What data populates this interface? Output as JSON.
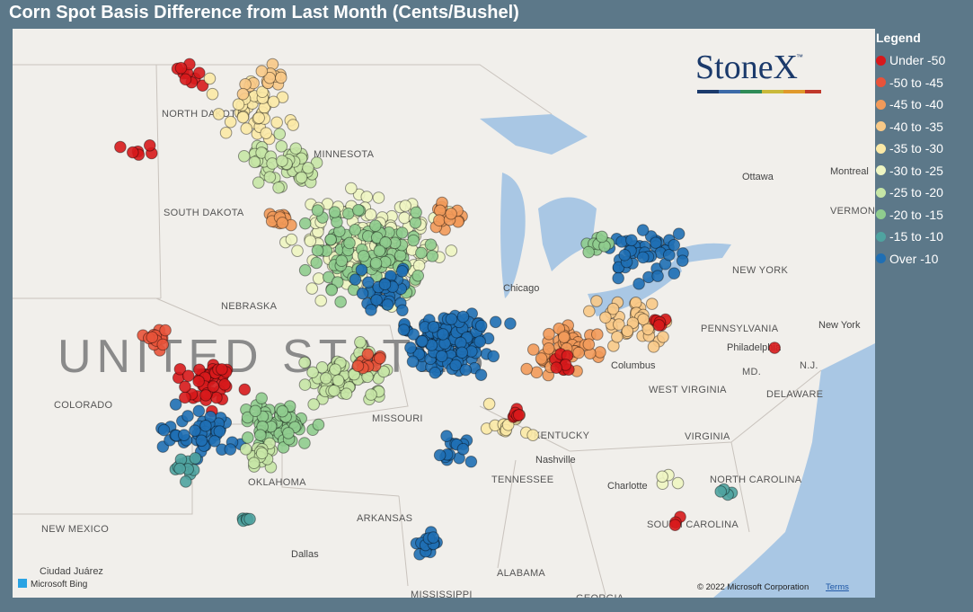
{
  "header": {
    "title": "Corn Spot Basis Difference from Last Month (Cents/Bushel)"
  },
  "legend": {
    "title": "Legend",
    "items": [
      {
        "label": "Under -50",
        "color": "#d7191c"
      },
      {
        "label": "-50 to -45",
        "color": "#e8533a"
      },
      {
        "label": "-45 to -40",
        "color": "#f29a5a"
      },
      {
        "label": "-40 to -35",
        "color": "#f8c987"
      },
      {
        "label": "-35 to -30",
        "color": "#fbe9a6"
      },
      {
        "label": "-30 to -25",
        "color": "#eef5c2"
      },
      {
        "label": "-25 to -20",
        "color": "#c6e6a6"
      },
      {
        "label": "-20 to -15",
        "color": "#8fcc8e"
      },
      {
        "label": "-15 to -10",
        "color": "#4fa3a0"
      },
      {
        "label": "Over -10",
        "color": "#1f6fb4"
      }
    ]
  },
  "logo": {
    "text": "StoneX",
    "mark": "™"
  },
  "map": {
    "country_label": "UNITED STATES",
    "labels": [
      "NORTH DAKOTA",
      "SOUTH DAKOTA",
      "MINNESOTA",
      "NEBRASKA",
      "COLORADO",
      "MISSOURI",
      "OKLAHOMA",
      "ARKANSAS",
      "NEW MEXICO",
      "TENNESSEE",
      "KENTUCKY",
      "WEST VIRGINIA",
      "VIRGINIA",
      "NORTH CAROLINA",
      "SOUTH CAROLINA",
      "PENNSYLVANIA",
      "NEW YORK",
      "ALABAMA",
      "GEORGIA",
      "MISSISSIPPI",
      "DELAWARE",
      "MD.",
      "N.J.",
      "VERMONT"
    ],
    "cities": [
      "Ottawa",
      "Montreal",
      "Chicago",
      "Nashville",
      "Columbus",
      "Philadelphia",
      "New York",
      "Dallas",
      "Charlotte",
      "Ciudad Juárez"
    ],
    "attribution": "Microsoft Bing",
    "copyright": "© 2022 Microsoft Corporation",
    "terms": "Terms"
  }
}
